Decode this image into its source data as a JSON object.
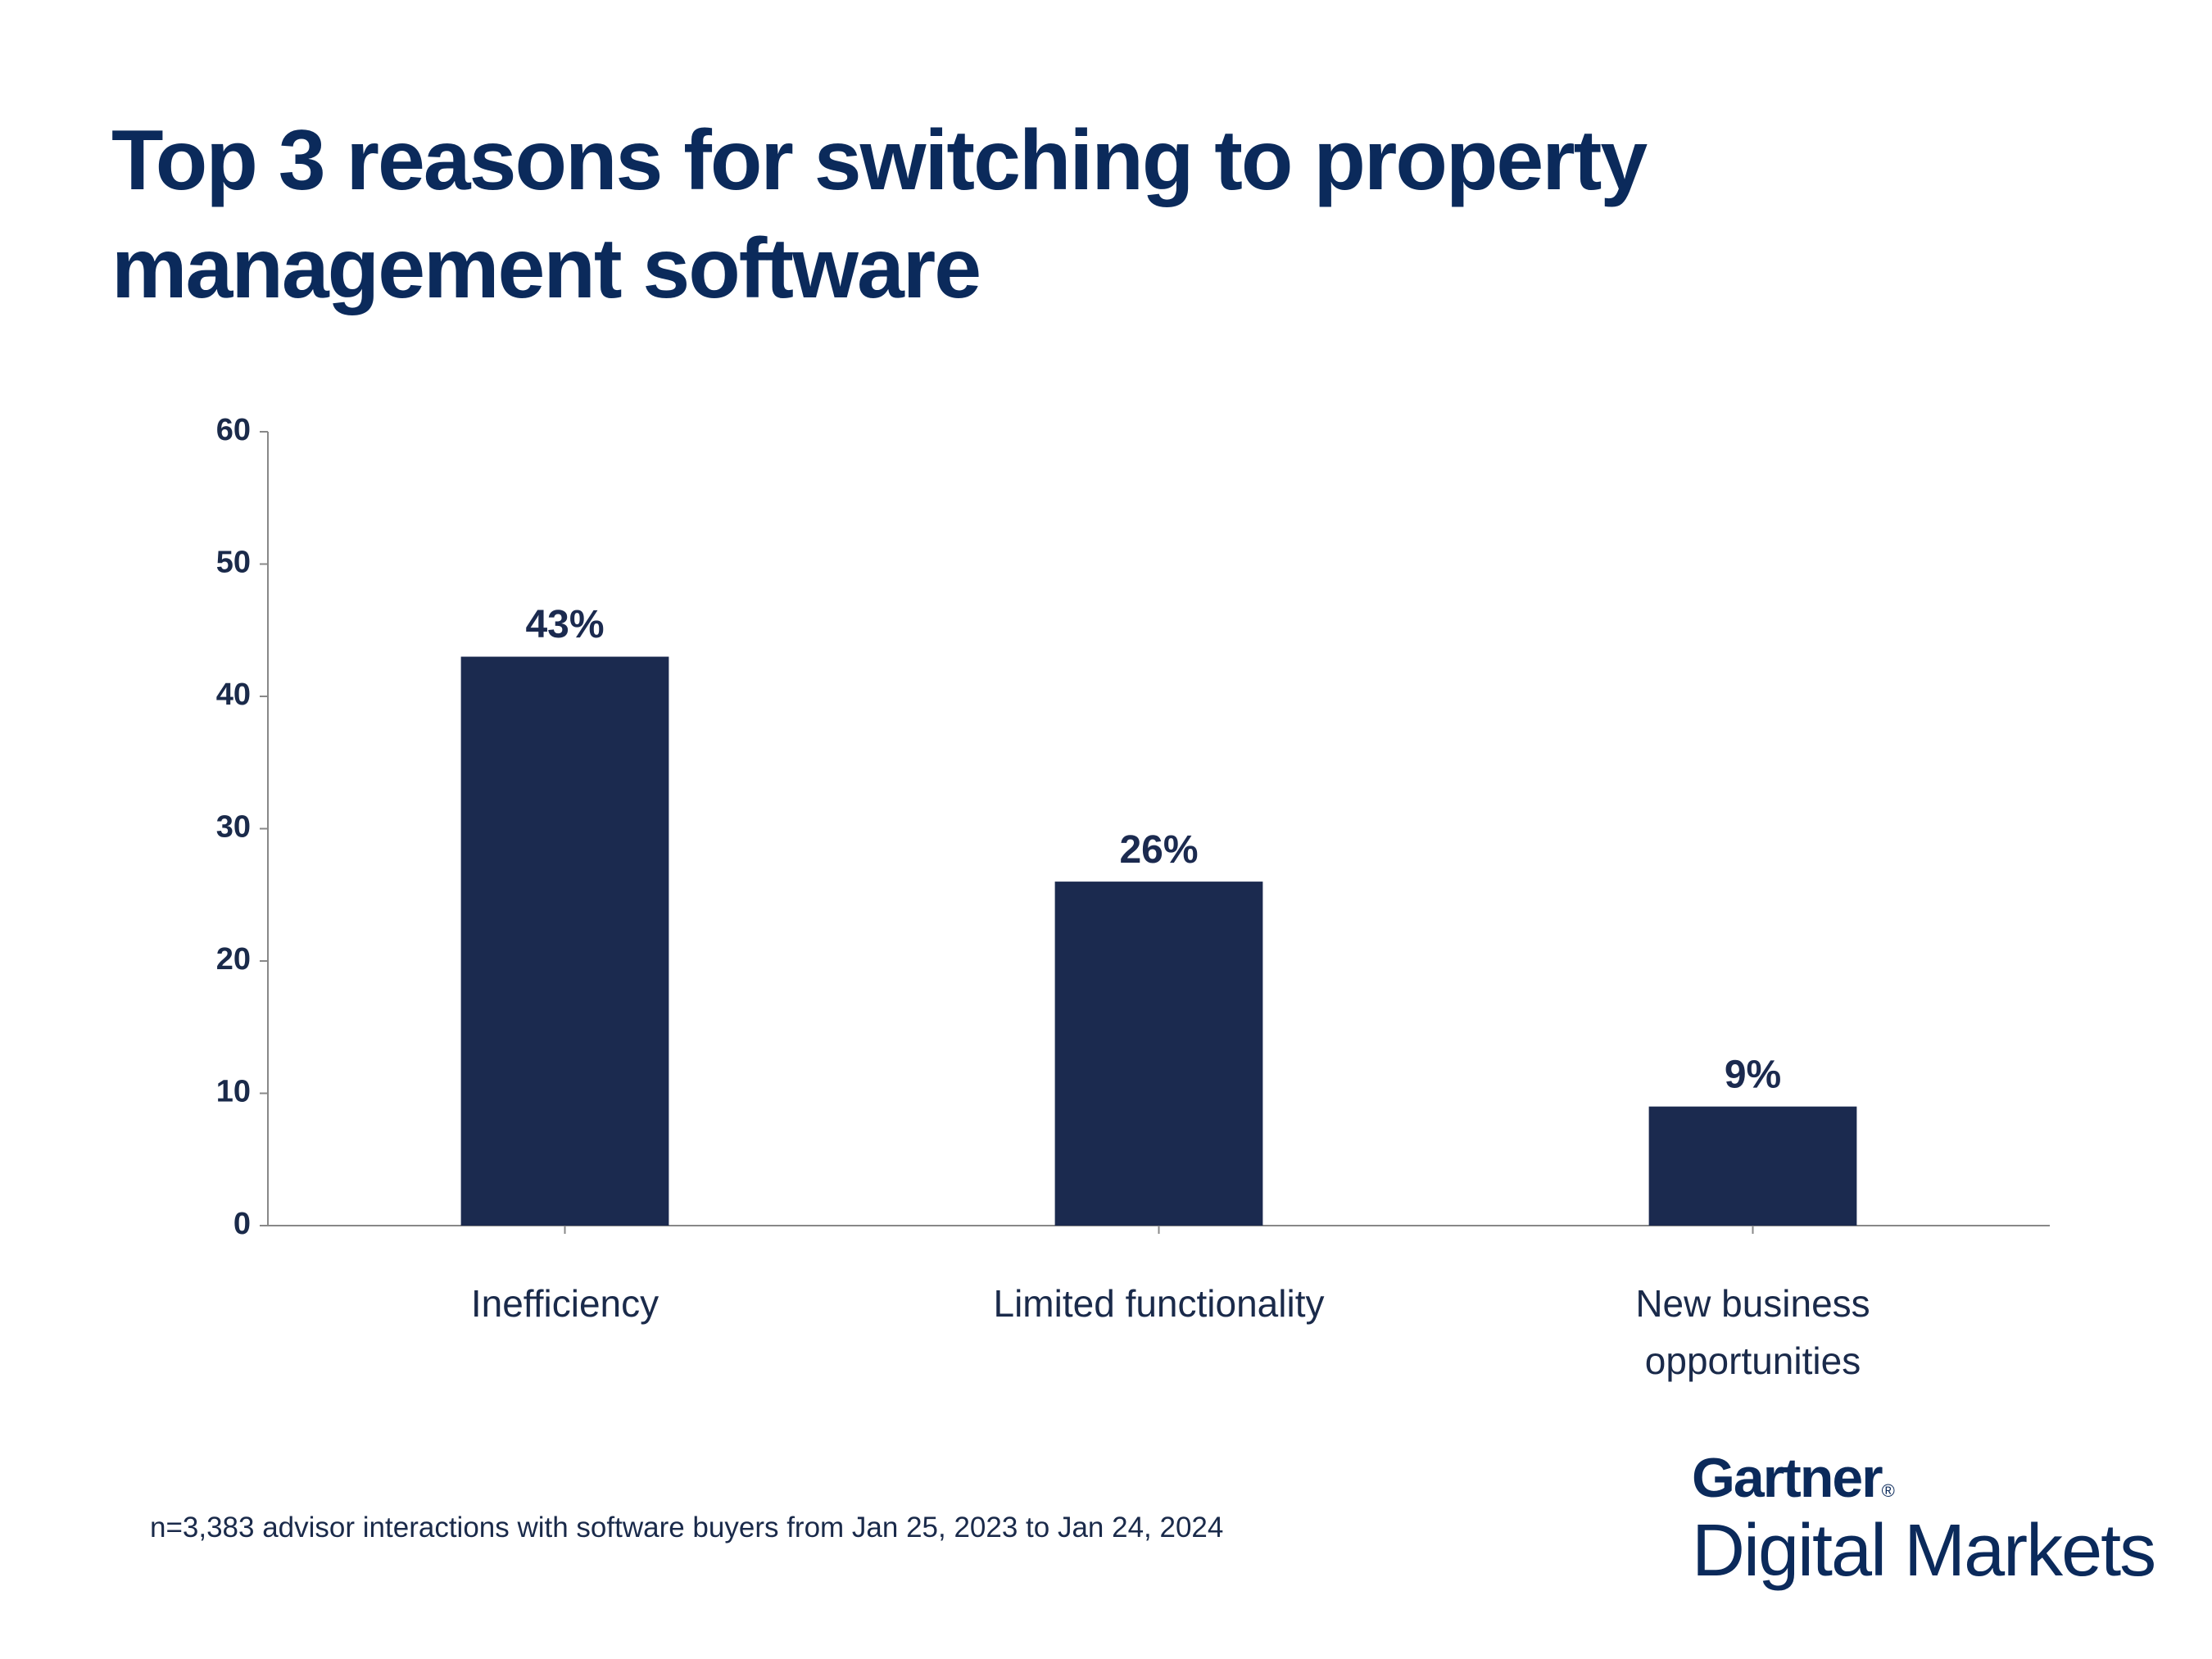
{
  "chart_data": {
    "type": "bar",
    "title": "Top 3 reasons for switching to property management software",
    "categories": [
      "Inefficiency",
      "Limited functionality",
      "New business opportunities"
    ],
    "values": [
      43,
      26,
      9
    ],
    "value_labels": [
      "43%",
      "26%",
      "9%"
    ],
    "color": "#1b2a4f",
    "ylim": [
      0,
      60
    ],
    "yticks": [
      0,
      10,
      20,
      30,
      40,
      50,
      60
    ],
    "footnote": "n=3,383 advisor interactions with software buyers from Jan 25, 2023 to Jan 24, 2024"
  },
  "brand": {
    "name": "Gartner",
    "mark": "®",
    "subtitle": "Digital Markets"
  }
}
